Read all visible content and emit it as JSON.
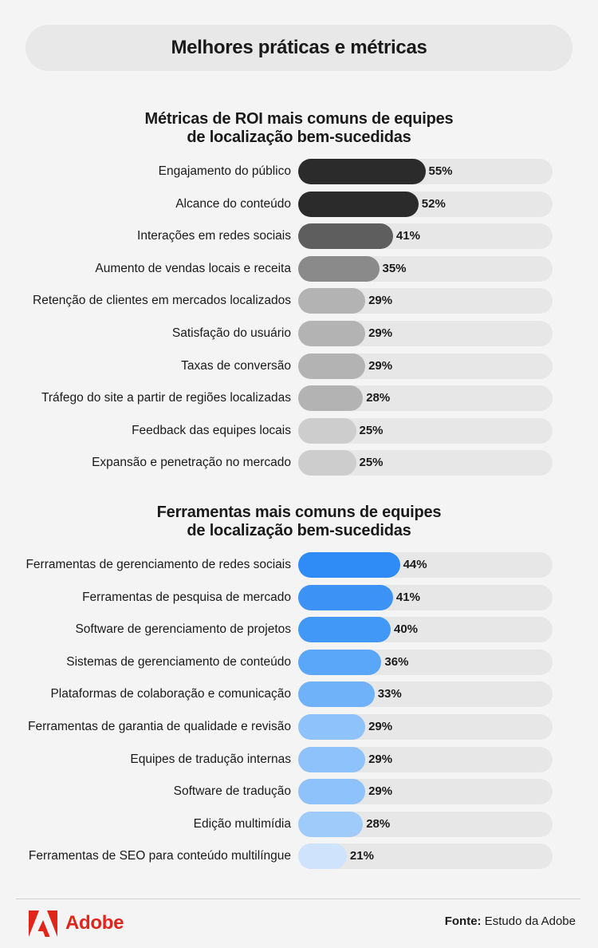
{
  "header": {
    "title": "Melhores práticas e métricas"
  },
  "chart_data": [
    {
      "type": "bar",
      "orientation": "horizontal",
      "title": "Métricas de ROI mais comuns de equipes de localização bem-sucedidas",
      "title_lines": [
        "Métricas de ROI mais comuns de equipes",
        "de localização bem-sucedidas"
      ],
      "xlim": [
        0,
        100
      ],
      "categories": [
        "Engajamento do público",
        "Alcance do conteúdo",
        "Interações em redes sociais",
        "Aumento de vendas locais e receita",
        "Retenção de clientes em mercados localizados",
        "Satisfação do usuário",
        "Taxas de conversão",
        "Tráfego do site a partir de regiões localizadas",
        "Feedback das equipes locais",
        "Expansão e penetração no mercado"
      ],
      "values": [
        55,
        52,
        41,
        35,
        29,
        29,
        29,
        28,
        25,
        25
      ],
      "labels": [
        "55%",
        "52%",
        "41%",
        "35%",
        "29%",
        "29%",
        "29%",
        "28%",
        "25%",
        "25%"
      ],
      "colors": [
        "#2b2b2b",
        "#2b2b2b",
        "#5e5e5e",
        "#8a8a8a",
        "#b3b3b3",
        "#b3b3b3",
        "#b3b3b3",
        "#b3b3b3",
        "#cdcdcd",
        "#cdcdcd"
      ]
    },
    {
      "type": "bar",
      "orientation": "horizontal",
      "title": "Ferramentas mais comuns de equipes de localização bem-sucedidas",
      "title_lines": [
        "Ferramentas mais comuns de equipes",
        "de localização bem-sucedidas"
      ],
      "xlim": [
        0,
        100
      ],
      "categories": [
        "Ferramentas de gerenciamento de redes sociais",
        "Ferramentas de pesquisa de mercado",
        "Software de gerenciamento de projetos",
        "Sistemas de gerenciamento de conteúdo",
        "Plataformas de colaboração e comunicação",
        "Ferramentas de garantia de qualidade e revisão",
        "Equipes de tradução internas",
        "Software de tradução",
        "Edição multimídia",
        "Ferramentas de SEO para conteúdo multilíngue"
      ],
      "values": [
        44,
        41,
        40,
        36,
        33,
        29,
        29,
        29,
        28,
        21
      ],
      "labels": [
        "44%",
        "41%",
        "40%",
        "36%",
        "33%",
        "29%",
        "29%",
        "29%",
        "28%",
        "21%"
      ],
      "colors": [
        "#2f8bf5",
        "#3d92f6",
        "#4298f6",
        "#5aa6f8",
        "#6fb2fa",
        "#8ec2fb",
        "#8ec2fb",
        "#8ec2fb",
        "#9fcbfb",
        "#cfe3fc"
      ]
    }
  ],
  "footer": {
    "brand": "Adobe",
    "brand_color": "#e1251b",
    "logo_icon": "adobe-logo-icon",
    "source_label": "Fonte:",
    "source_text": " Estudo da Adobe"
  }
}
